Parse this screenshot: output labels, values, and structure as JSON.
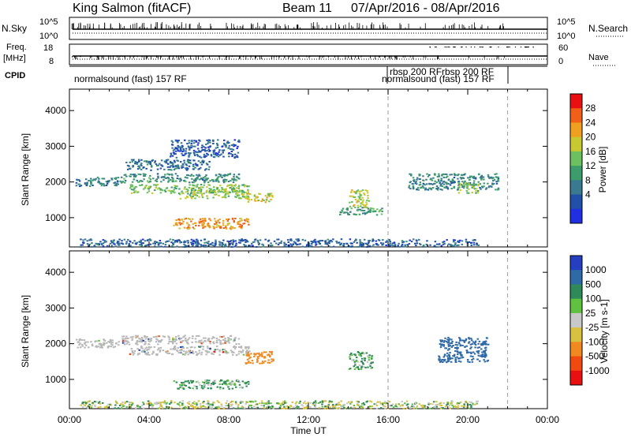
{
  "header": {
    "station": "King Salmon (fitACF)",
    "beam": "Beam 11",
    "date_range": "07/Apr/2016 - 08/Apr/2016"
  },
  "top_panels": {
    "nsky": {
      "left_label": "N.Sky",
      "right_label": "N.Search",
      "left_ticks": [
        "10^5",
        "10^0"
      ],
      "right_ticks": [
        "10^5",
        "10^0"
      ]
    },
    "freq": {
      "left_label_1": "Freq.",
      "left_label_2": "[MHz]",
      "left_ticks": [
        "18",
        "8"
      ],
      "right_label": "Nave",
      "right_ticks": [
        "60",
        "0"
      ]
    },
    "cpid": {
      "label": "CPID",
      "modes": [
        "normalsound (fast) 157 RF",
        "rbsp 200 RF",
        "normalsound (fast) 157 RF",
        "rbsp 200 RF"
      ]
    }
  },
  "colors": {
    "power_scale": [
      "#2030e0",
      "#2050a8",
      "#3a7a90",
      "#3c9c6c",
      "#6cc060",
      "#c8c832",
      "#f0a020",
      "#f06018",
      "#e81010"
    ],
    "velocity_scale": [
      "#2440c0",
      "#2e6aa8",
      "#2e8a58",
      "#60c040",
      "#c8c8c8",
      "#d8c040",
      "#f08a20",
      "#f04a10",
      "#e81010"
    ],
    "ground_scatter": "#b8b8b8"
  },
  "chart_data": [
    {
      "type": "heatmap",
      "title": "Power",
      "xlabel": "Time UT",
      "ylabel": "Slant Range [km]",
      "xlim": [
        "00:00",
        "24:00"
      ],
      "ylim": [
        180,
        4600
      ],
      "x_ticks": [
        "00:00",
        "04:00",
        "08:00",
        "12:00",
        "16:00",
        "20:00",
        "00:00"
      ],
      "y_ticks": [
        "1000",
        "2000",
        "3000",
        "4000"
      ],
      "colorbar": {
        "label": "Power [dB]",
        "ticks": [
          "4",
          "8",
          "12",
          "16",
          "20",
          "24",
          "28"
        ],
        "range": [
          0,
          32
        ]
      },
      "markers_ut_hours": [
        16.0,
        22.0
      ],
      "scatter_regions": [
        {
          "t": [
            0.3,
            2.5
          ],
          "r": [
            1900,
            2150
          ],
          "value": 9
        },
        {
          "t": [
            2.5,
            8.5
          ],
          "r": [
            2000,
            2250
          ],
          "value": 11
        },
        {
          "t": [
            3.0,
            9.0
          ],
          "r": [
            1700,
            1950
          ],
          "value": 16
        },
        {
          "t": [
            5.5,
            9.0
          ],
          "r": [
            1550,
            1800
          ],
          "value": 17
        },
        {
          "t": [
            8.8,
            10.2
          ],
          "r": [
            1450,
            1700
          ],
          "value": 20
        },
        {
          "t": [
            2.8,
            7.0
          ],
          "r": [
            2350,
            2650
          ],
          "value": 8
        },
        {
          "t": [
            5.0,
            8.5
          ],
          "r": [
            2700,
            3200
          ],
          "value": 6
        },
        {
          "t": [
            5.2,
            9.0
          ],
          "r": [
            700,
            1000
          ],
          "value": 24
        },
        {
          "t": [
            14.0,
            15.0
          ],
          "r": [
            1300,
            1800
          ],
          "value": 18
        },
        {
          "t": [
            13.5,
            15.8
          ],
          "r": [
            1100,
            1300
          ],
          "value": 12
        },
        {
          "t": [
            17.0,
            21.5
          ],
          "r": [
            1800,
            2250
          ],
          "value": 10
        },
        {
          "t": [
            19.5,
            20.5
          ],
          "r": [
            1700,
            2000
          ],
          "value": 16
        },
        {
          "t": [
            0.5,
            20.5
          ],
          "r": [
            200,
            420
          ],
          "value": 7
        }
      ]
    },
    {
      "type": "heatmap",
      "title": "Velocity",
      "xlabel": "Time UT",
      "ylabel": "Slant Range [km]",
      "xlim": [
        "00:00",
        "24:00"
      ],
      "ylim": [
        180,
        4600
      ],
      "x_ticks": [
        "00:00",
        "04:00",
        "08:00",
        "12:00",
        "16:00",
        "20:00",
        "00:00"
      ],
      "y_ticks": [
        "1000",
        "2000",
        "3000",
        "4000"
      ],
      "colorbar": {
        "label": "Velocity [m s-1]",
        "ticks": [
          "1000",
          "500",
          "100",
          "25",
          "-25",
          "-100",
          "-500",
          "-1000"
        ]
      },
      "markers_ut_hours": [
        16.0,
        22.0
      ],
      "scatter_regions": [
        {
          "t": [
            0.3,
            2.5
          ],
          "r": [
            1900,
            2150
          ],
          "value": "ground"
        },
        {
          "t": [
            2.5,
            8.5
          ],
          "r": [
            2000,
            2250
          ],
          "value": "ground"
        },
        {
          "t": [
            3.0,
            9.0
          ],
          "r": [
            1700,
            1950
          ],
          "value": "ground"
        },
        {
          "t": [
            8.8,
            10.2
          ],
          "r": [
            1450,
            1800
          ],
          "value": -500
        },
        {
          "t": [
            5.2,
            9.0
          ],
          "r": [
            750,
            1000
          ],
          "value": 100
        },
        {
          "t": [
            14.0,
            15.2
          ],
          "r": [
            1300,
            1800
          ],
          "value": 100
        },
        {
          "t": [
            18.5,
            21.0
          ],
          "r": [
            1500,
            2200
          ],
          "value": 500
        },
        {
          "t": [
            0.5,
            20.5
          ],
          "r": [
            200,
            420
          ],
          "value": -25
        }
      ]
    }
  ]
}
